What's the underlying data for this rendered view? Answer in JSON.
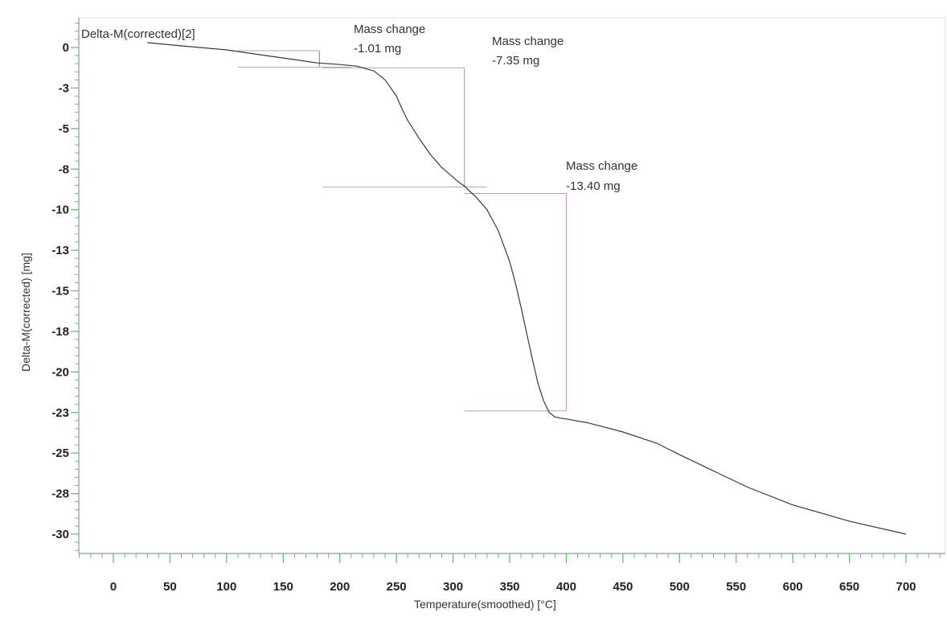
{
  "colors": {
    "curve": "#3a3a3a",
    "axis": "#9bb0b8",
    "tick_major": "#5fbf5f",
    "tick_minor": "#9a9ab0",
    "annotation_line": "#b8a3b8",
    "annotation_marker": "#5fbf5f",
    "frame": "#d8d8d8"
  },
  "chart_data": {
    "type": "line",
    "title": "",
    "series_label": "Delta-M(corrected)[2]",
    "xlabel": "Temperature(smoothed)  [°C]",
    "ylabel": "Delta-M(corrected)  [mg]",
    "xlim": [
      -30,
      740
    ],
    "ylim": [
      -31.2,
      1.8
    ],
    "grid": false,
    "x_ticks": [
      0,
      50,
      100,
      150,
      200,
      250,
      300,
      350,
      400,
      450,
      500,
      550,
      600,
      650,
      700
    ],
    "x_tick_labels": [
      "0",
      "50",
      "100",
      "150",
      "200",
      "250",
      "300",
      "350",
      "400",
      "450",
      "500",
      "550",
      "600",
      "650",
      "700"
    ],
    "y_ticks": [
      0,
      -2.5,
      -5,
      -7.5,
      -10,
      -12.5,
      -15,
      -17.5,
      -20,
      -22.5,
      -25,
      -27.5,
      -30
    ],
    "y_tick_labels": [
      "0",
      "-3",
      "-5",
      "-8",
      "-10",
      "-13",
      "-15",
      "-18",
      "-20",
      "-23",
      "-25",
      "-28",
      "-30"
    ],
    "series": [
      {
        "name": "Delta-M(corrected)[2]",
        "x": [
          30,
          60,
          100,
          130,
          160,
          180,
          200,
          215,
          230,
          240,
          250,
          255,
          260,
          270,
          280,
          290,
          300,
          305,
          310,
          320,
          330,
          340,
          350,
          355,
          360,
          365,
          370,
          375,
          380,
          385,
          390,
          395,
          400,
          420,
          450,
          480,
          500,
          530,
          560,
          600,
          650,
          700
        ],
        "y": [
          0.3,
          0.1,
          -0.15,
          -0.45,
          -0.75,
          -0.95,
          -1.05,
          -1.15,
          -1.45,
          -2.0,
          -3.0,
          -3.8,
          -4.5,
          -5.6,
          -6.6,
          -7.4,
          -8.0,
          -8.3,
          -8.55,
          -9.2,
          -10.0,
          -11.3,
          -13.2,
          -14.5,
          -16.0,
          -17.6,
          -19.2,
          -20.7,
          -21.8,
          -22.5,
          -22.78,
          -22.85,
          -22.9,
          -23.15,
          -23.7,
          -24.4,
          -25.1,
          -26.1,
          -27.1,
          -28.2,
          -29.2,
          -30.0
        ]
      }
    ],
    "annotations": [
      {
        "label": "Mass change",
        "value": "-1.01 mg",
        "x_start": 110,
        "x_end": 210,
        "x_marker": 182,
        "y_top": -0.2,
        "y_bottom": -1.21
      },
      {
        "label": "Mass change",
        "value": "-7.35 mg",
        "x_start": 185,
        "x_end": 330,
        "x_marker": 310,
        "y_top": -1.25,
        "y_bottom": -8.6
      },
      {
        "label": "Mass change",
        "value": "-13.40 mg",
        "x_start": 310,
        "x_end": 400,
        "x_marker": 400,
        "y_top": -9.0,
        "y_bottom": -22.4
      }
    ]
  }
}
